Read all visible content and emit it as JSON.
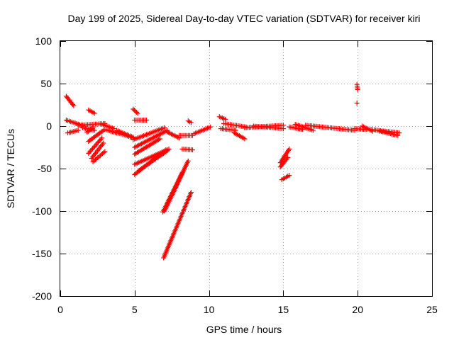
{
  "chart_data": {
    "type": "scatter",
    "title": "Day 199 of 2025, Sidereal Day-to-day VTEC variation (SDTVAR) for receiver kiri",
    "xlabel": "GPS time / hours",
    "ylabel": "SDTVAR / TECUs",
    "xlim": [
      0,
      25
    ],
    "ylim": [
      -200,
      100
    ],
    "xticks": [
      "0",
      "5",
      "10",
      "15",
      "20",
      "25"
    ],
    "yticks": [
      "100",
      "50",
      "0",
      "-50",
      "-100",
      "-150",
      "-200"
    ],
    "grid": true,
    "marker": "+",
    "marker_color": "#ff0000",
    "series": [
      {
        "name": "SDTVAR",
        "segments": [
          {
            "x": [
              0.4,
              0.9
            ],
            "y": [
              35,
              24
            ]
          },
          {
            "x": [
              0.4,
              1.6
            ],
            "y": [
              7,
              0
            ]
          },
          {
            "x": [
              0.5,
              1.2
            ],
            "y": [
              -8,
              -5
            ]
          },
          {
            "x": [
              1.2,
              3.0
            ],
            "y": [
              1,
              3
            ]
          },
          {
            "x": [
              1.5,
              2.3
            ],
            "y": [
              -2,
              -5
            ]
          },
          {
            "x": [
              1.8,
              2.2
            ],
            "y": [
              -7,
              -2
            ]
          },
          {
            "x": [
              1.9,
              2.3
            ],
            "y": [
              19,
              15
            ]
          },
          {
            "x": [
              1.9,
              2.9
            ],
            "y": [
              -18,
              -5
            ]
          },
          {
            "x": [
              1.9,
              2.8
            ],
            "y": [
              -32,
              -14
            ]
          },
          {
            "x": [
              2.1,
              2.9
            ],
            "y": [
              -38,
              -20
            ]
          },
          {
            "x": [
              2.2,
              3.0
            ],
            "y": [
              -42,
              -30
            ]
          },
          {
            "x": [
              2.8,
              3.6
            ],
            "y": [
              2,
              -3
            ]
          },
          {
            "x": [
              3.0,
              3.8
            ],
            "y": [
              -4,
              -8
            ]
          },
          {
            "x": [
              3.8,
              4.9
            ],
            "y": [
              -5,
              -13
            ]
          },
          {
            "x": [
              3.9,
              4.9
            ],
            "y": [
              -8,
              -14
            ]
          },
          {
            "x": [
              4.9,
              5.2
            ],
            "y": [
              20,
              15
            ]
          },
          {
            "x": [
              5.0,
              5.8
            ],
            "y": [
              7,
              7
            ]
          },
          {
            "x": [
              4.9,
              7.0
            ],
            "y": [
              -16,
              -2
            ]
          },
          {
            "x": [
              5.0,
              7.2
            ],
            "y": [
              -25,
              -5
            ]
          },
          {
            "x": [
              5.0,
              6.7
            ],
            "y": [
              -33,
              -15
            ]
          },
          {
            "x": [
              5.0,
              7.3
            ],
            "y": [
              -45,
              -27
            ]
          },
          {
            "x": [
              5.0,
              7.1
            ],
            "y": [
              -57,
              -28
            ]
          },
          {
            "x": [
              5.3,
              7.2
            ],
            "y": [
              -52,
              -29
            ]
          },
          {
            "x": [
              7.0,
              8.6
            ],
            "y": [
              -100,
              -41
            ]
          },
          {
            "x": [
              6.9,
              8.2
            ],
            "y": [
              -101,
              -55
            ]
          },
          {
            "x": [
              6.95,
              8.8
            ],
            "y": [
              -155,
              -78
            ]
          },
          {
            "x": [
              7.2,
              8.0
            ],
            "y": [
              -7,
              -14
            ]
          },
          {
            "x": [
              8.0,
              8.9
            ],
            "y": [
              -11,
              -11
            ]
          },
          {
            "x": [
              8.2,
              8.9
            ],
            "y": [
              -27,
              -28
            ]
          },
          {
            "x": [
              8.6,
              8.8
            ],
            "y": [
              6,
              4
            ]
          },
          {
            "x": [
              9.0,
              10.1
            ],
            "y": [
              -9,
              -1
            ]
          },
          {
            "x": [
              10.7,
              11.1
            ],
            "y": [
              11,
              8
            ]
          },
          {
            "x": [
              10.8,
              11.8
            ],
            "y": [
              -3,
              -5
            ]
          },
          {
            "x": [
              11.0,
              12.5
            ],
            "y": [
              3,
              -1
            ]
          },
          {
            "x": [
              11.7,
              12.4
            ],
            "y": [
              -8,
              -15
            ]
          },
          {
            "x": [
              12.4,
              15.0
            ],
            "y": [
              -2,
              1
            ]
          },
          {
            "x": [
              13.0,
              15.0
            ],
            "y": [
              0,
              -3
            ]
          },
          {
            "x": [
              14.8,
              15.4
            ],
            "y": [
              -43,
              -27
            ]
          },
          {
            "x": [
              14.8,
              15.3
            ],
            "y": [
              -48,
              -37
            ]
          },
          {
            "x": [
              14.9,
              15.4
            ],
            "y": [
              -63,
              -58
            ]
          },
          {
            "x": [
              15.4,
              16.3
            ],
            "y": [
              -1,
              -4
            ]
          },
          {
            "x": [
              15.8,
              17.0
            ],
            "y": [
              2,
              -5
            ]
          },
          {
            "x": [
              16.5,
              19.8
            ],
            "y": [
              1,
              -5
            ]
          },
          {
            "x": [
              19.95,
              20.0
            ],
            "y": [
              49,
              43
            ]
          },
          {
            "x": [
              19.95,
              19.95
            ],
            "y": [
              27,
              27
            ]
          },
          {
            "x": [
              19.8,
              20.6
            ],
            "y": [
              -3,
              -4
            ]
          },
          {
            "x": [
              20.3,
              21.0
            ],
            "y": [
              0,
              -6
            ]
          },
          {
            "x": [
              20.9,
              22.8
            ],
            "y": [
              -4,
              -8
            ]
          },
          {
            "x": [
              21.5,
              22.7
            ],
            "y": [
              -6,
              -11
            ]
          }
        ]
      }
    ]
  }
}
